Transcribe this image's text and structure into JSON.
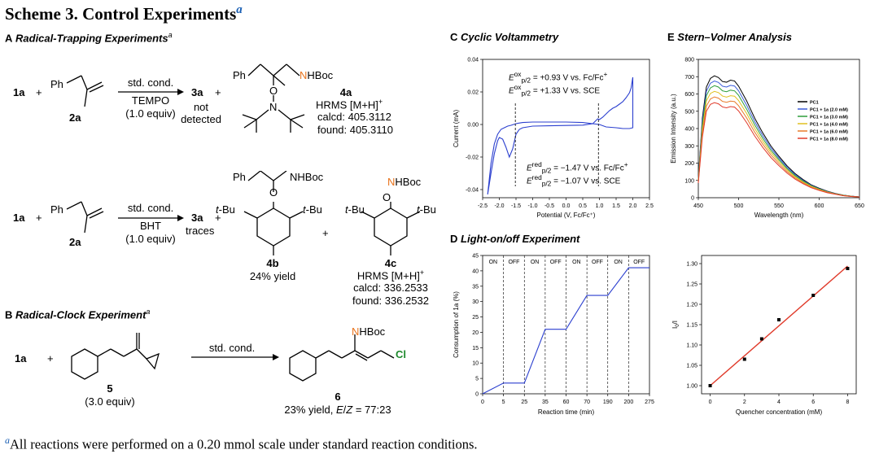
{
  "scheme_title": "Scheme 3. Control Experiments",
  "scheme_mark": "a",
  "sectionA": {
    "letter": "A",
    "title": "Radical-Trapping Experiments",
    "mark": "a"
  },
  "sectionB": {
    "letter": "B",
    "title": "Radical-Clock Experiment",
    "mark": "a"
  },
  "sectionC": {
    "letter": "C",
    "title": "Cyclic Voltammetry"
  },
  "sectionD": {
    "letter": "D",
    "title": "Light-on/off Experiment"
  },
  "sectionE": {
    "letter": "E",
    "title": "Stern–Volmer Analysis"
  },
  "rxn1": {
    "reactant1": "1a",
    "plus": "+",
    "ph": "Ph",
    "reactant2": "2a",
    "cond_top": "std. cond.",
    "cond_reagent": "TEMPO",
    "cond_equiv": "(1.0 equiv)",
    "product": "3a",
    "product_note1": "not",
    "product_note2": "detected",
    "nhboc": "NHBoc",
    "o": "O",
    "n": "N",
    "adduct": "4a",
    "hrms": "HRMS [M+H]",
    "hrms_sup": "+",
    "calcd": "calcd: 405.3112",
    "found": "found: 405.3110"
  },
  "rxn2": {
    "reactant1": "1a",
    "plus": "+",
    "ph": "Ph",
    "reactant2": "2a",
    "cond_top": "std. cond.",
    "cond_reagent": "BHT",
    "cond_equiv": "(1.0 equiv)",
    "product": "3a",
    "product_note": "traces",
    "tbu": "t-Bu",
    "nhboc": "NHBoc",
    "o": "O",
    "adduct1": "4b",
    "adduct1_yield": "24% yield",
    "adduct2": "4c",
    "hrms": "HRMS [M+H]",
    "hrms_sup": "+",
    "calcd": "calcd: 336.2533",
    "found": "found: 336.2532"
  },
  "rxn3": {
    "reactant1": "1a",
    "plus": "+",
    "clock": "5",
    "clock_equiv": "(3.0 equiv)",
    "cond_top": "std. cond.",
    "product": "6",
    "nhboc": "NHBoc",
    "cl": "Cl",
    "product_yield": "23% yield, E/Z = 77:23"
  },
  "cv_annotations": {
    "ox1": "E",
    "ox1_sup": "ox",
    "ox1_sub": "p/2",
    "ox1_val": " = +0.93 V vs. Fc/Fc",
    "ox2_val": " = +1.33 V vs. SCE",
    "red1_sup": "red",
    "red1_sub": "p/2",
    "red1_val": " = −1.47 V vs. Fc/Fc",
    "red2_val": " = −1.07 V vs. SCE",
    "plus": "+"
  },
  "chart_data": [
    {
      "id": "cv",
      "type": "line",
      "xlabel": "Potential (V, Fc/Fc⁺)",
      "ylabel": "Current (mA)",
      "xlim": [
        -2.5,
        2.5
      ],
      "ylim": [
        -0.045,
        0.04
      ],
      "xticks": [
        "-2.5",
        "-2.0",
        "-1.5",
        "-1.0",
        "-0.5",
        "0.0",
        "0.5",
        "1.0",
        "1.5",
        "2.0",
        "2.5"
      ],
      "yticks": [
        "-0.04",
        "-0.02",
        "0.00",
        "0.02",
        "0.04"
      ],
      "series": [
        {
          "color": "#2b3fcf",
          "x": [
            -2.35,
            -2.25,
            -2.15,
            -2.05,
            -2.0,
            -1.9,
            -1.8,
            -1.7,
            -1.6,
            -1.5,
            -1.4,
            -1.3,
            -1.0,
            -0.5,
            0.0,
            0.5,
            0.8,
            0.9,
            0.95,
            1.0,
            1.1,
            1.2,
            1.3,
            1.4,
            1.5,
            1.6,
            1.7,
            1.8,
            1.9,
            1.95,
            2.0,
            2.0,
            1.9,
            1.7,
            1.5,
            1.2,
            1.0,
            0.5,
            0.0,
            -0.5,
            -1.0,
            -1.3,
            -1.45,
            -1.55,
            -1.65,
            -1.75,
            -1.85,
            -1.95,
            -2.05,
            -2.15,
            -2.25,
            -2.35
          ],
          "y": [
            -0.043,
            -0.03,
            -0.018,
            -0.01,
            -0.008,
            -0.009,
            -0.014,
            -0.02,
            -0.015,
            -0.006,
            -0.003,
            -0.002,
            -0.001,
            -0.0008,
            -0.0006,
            -0.0004,
            0.0005,
            0.0025,
            0.0035,
            0.003,
            0.0045,
            0.0065,
            0.0085,
            0.01,
            0.011,
            0.0125,
            0.014,
            0.0165,
            0.0195,
            0.0225,
            0.029,
            -0.002,
            -0.0025,
            -0.0025,
            -0.002,
            -0.0015,
            0.0,
            0.0012,
            0.0015,
            0.0015,
            0.0015,
            0.0012,
            0.0007,
            0.0002,
            -0.0005,
            -0.001,
            -0.002,
            -0.003,
            -0.006,
            -0.012,
            -0.024,
            -0.043
          ]
        }
      ],
      "markers": [
        -1.52,
        0.97
      ]
    },
    {
      "id": "stern_volmer_spectra",
      "type": "line",
      "xlabel": "Wavelength (nm)",
      "ylabel": "Emission Intensity (a.u.)",
      "xlim": [
        450,
        650
      ],
      "ylim": [
        0,
        800
      ],
      "xticks": [
        "450",
        "500",
        "550",
        "600",
        "650"
      ],
      "yticks": [
        "0",
        "100",
        "200",
        "300",
        "400",
        "500",
        "600",
        "700",
        "800"
      ],
      "legend_position": "right",
      "x": [
        450,
        455,
        460,
        465,
        470,
        475,
        480,
        485,
        490,
        495,
        500,
        510,
        520,
        530,
        540,
        550,
        560,
        570,
        580,
        590,
        600,
        610,
        620,
        630,
        640,
        650
      ],
      "series": [
        {
          "name": "PC1",
          "color": "#000000",
          "values": [
            110,
            460,
            640,
            690,
            705,
            695,
            672,
            668,
            680,
            675,
            645,
            560,
            460,
            375,
            300,
            240,
            185,
            140,
            105,
            75,
            55,
            38,
            25,
            15,
            9,
            5
          ]
        },
        {
          "name": "PC1 + 1a (2.0 mM)",
          "color": "#3a5bd9",
          "values": [
            105,
            440,
            615,
            662,
            675,
            667,
            645,
            640,
            650,
            646,
            618,
            535,
            440,
            358,
            288,
            230,
            177,
            134,
            100,
            72,
            52,
            36,
            24,
            14,
            9,
            5
          ]
        },
        {
          "name": "PC1 + 1a (3.0 mM)",
          "color": "#2e9d3a",
          "values": [
            100,
            420,
            590,
            635,
            648,
            640,
            618,
            613,
            622,
            618,
            592,
            512,
            421,
            343,
            275,
            220,
            169,
            128,
            96,
            69,
            50,
            34,
            23,
            14,
            8,
            5
          ]
        },
        {
          "name": "PC1 + 1a (4.0 mM)",
          "color": "#e0c020",
          "values": [
            95,
            395,
            560,
            603,
            615,
            608,
            588,
            582,
            590,
            587,
            562,
            487,
            400,
            326,
            262,
            209,
            161,
            122,
            91,
            66,
            48,
            33,
            22,
            13,
            8,
            4
          ]
        },
        {
          "name": "PC1 + 1a (6.0 mM)",
          "color": "#e87a2a",
          "values": [
            90,
            372,
            530,
            571,
            583,
            576,
            557,
            552,
            559,
            556,
            532,
            461,
            379,
            309,
            248,
            198,
            152,
            115,
            86,
            62,
            45,
            31,
            21,
            12,
            7,
            4
          ]
        },
        {
          "name": "PC1 + 1a (8.0 mM)",
          "color": "#e03a2a",
          "values": [
            85,
            350,
            500,
            540,
            550,
            543,
            525,
            520,
            527,
            524,
            502,
            434,
            357,
            291,
            233,
            186,
            143,
            108,
            81,
            58,
            42,
            29,
            20,
            12,
            7,
            4
          ]
        }
      ]
    },
    {
      "id": "light_on_off",
      "type": "line",
      "xlabel": "Reaction time (min)",
      "ylabel": "Consumption of 1a (%)",
      "ylim": [
        0,
        45
      ],
      "xticks": [
        "0",
        "5",
        "25",
        "35",
        "60",
        "70",
        "190",
        "200",
        "275"
      ],
      "yticks": [
        "0",
        "5",
        "10",
        "15",
        "20",
        "25",
        "30",
        "35",
        "40",
        "45"
      ],
      "segments": [
        "ON",
        "OFF",
        "ON",
        "OFF",
        "ON",
        "OFF",
        "ON",
        "OFF"
      ],
      "series": [
        {
          "color": "#2b3fcf",
          "x": [
            0,
            5,
            25,
            35,
            60,
            70,
            190,
            200,
            275
          ],
          "y": [
            0,
            3.5,
            3.5,
            21,
            21,
            32,
            32,
            41,
            41
          ]
        }
      ]
    },
    {
      "id": "stern_volmer_plot",
      "type": "scatter",
      "xlabel": "Quencher concentration (mM)",
      "ylabel": "I0/I",
      "xlim": [
        -0.5,
        8.5
      ],
      "ylim": [
        0.98,
        1.32
      ],
      "xticks": [
        "0",
        "2",
        "4",
        "6",
        "8"
      ],
      "yticks": [
        "1.00",
        "1.05",
        "1.10",
        "1.15",
        "1.20",
        "1.25",
        "1.30"
      ],
      "series": [
        {
          "name": "data",
          "color": "#000000",
          "x": [
            0,
            2,
            3,
            4,
            6,
            8
          ],
          "y": [
            1.0,
            1.065,
            1.115,
            1.162,
            1.222,
            1.288
          ]
        },
        {
          "name": "fit",
          "color": "#e03a2a",
          "x": [
            0,
            8
          ],
          "y": [
            1.0,
            1.294
          ]
        }
      ]
    }
  ]
}
